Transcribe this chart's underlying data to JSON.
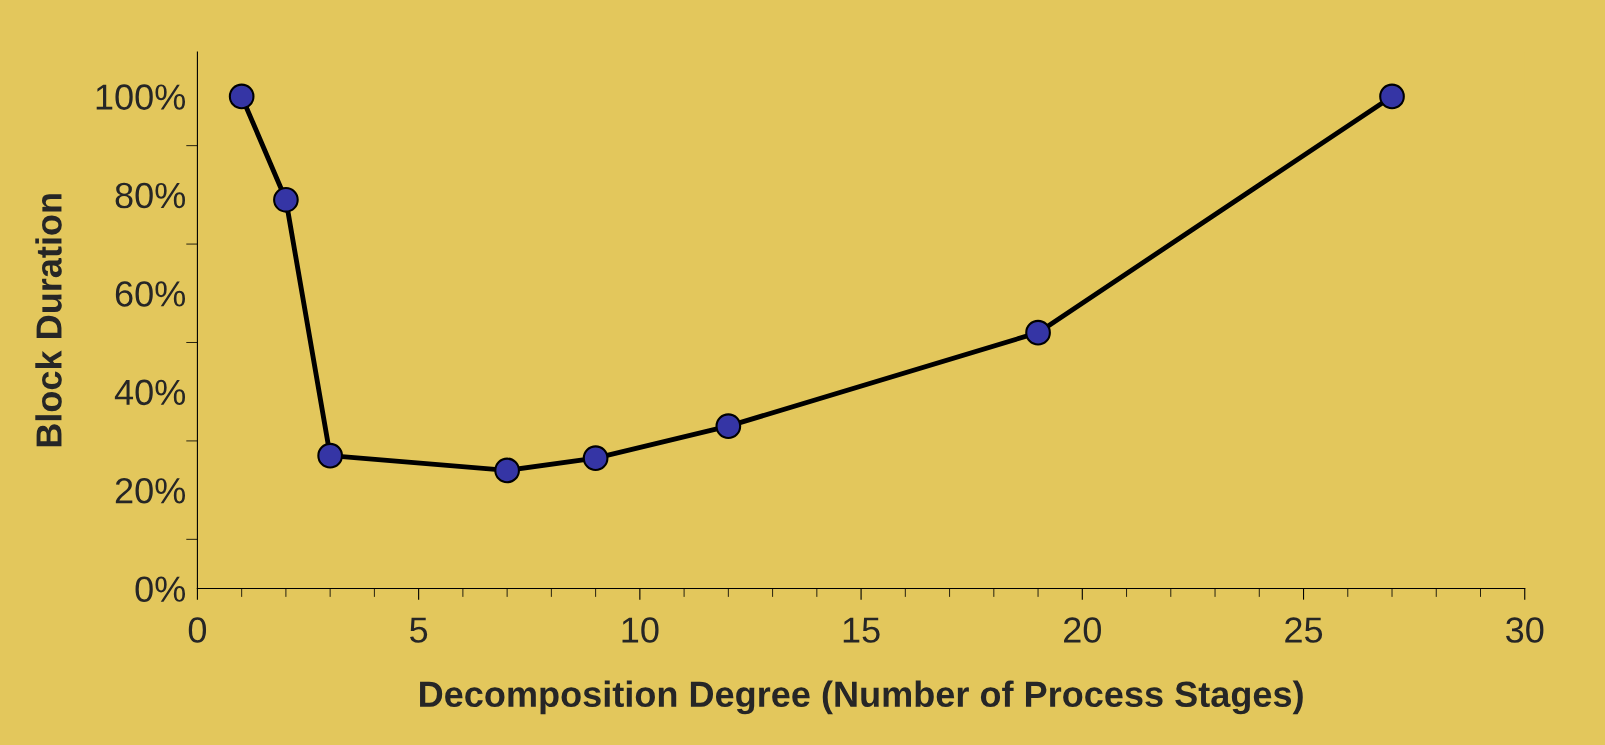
{
  "chart_data": {
    "type": "line",
    "xlabel": "Decomposition Degree (Number of Process Stages)",
    "ylabel": "Block Duration",
    "x": [
      1,
      2,
      3,
      7,
      9,
      12,
      19,
      27
    ],
    "series": [
      {
        "color": "#000000",
        "values": [
          100,
          79,
          27,
          24,
          26.5,
          33,
          52,
          100
        ]
      }
    ],
    "marker": "circle",
    "line_style": "solid",
    "xlim": [
      0,
      30
    ],
    "xticks": [
      0,
      5,
      10,
      15,
      20,
      25,
      30
    ],
    "ylim": [
      0,
      109
    ],
    "yticks": [
      {
        "value": 0,
        "label": "0%"
      },
      {
        "value": 20,
        "label": "20%"
      },
      {
        "value": 40,
        "label": "40%"
      },
      {
        "value": 60,
        "label": "60%"
      },
      {
        "value": 80,
        "label": "80%"
      },
      {
        "value": 100,
        "label": "100%"
      }
    ],
    "grid": false,
    "legend": false
  }
}
